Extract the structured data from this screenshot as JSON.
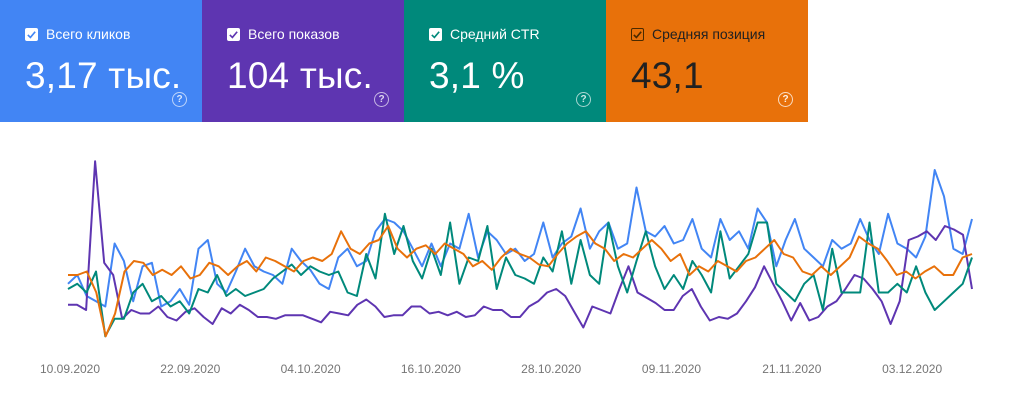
{
  "cards": [
    {
      "label": "Всего кликов",
      "value": "3,17 тыс.",
      "color": "#4285f4",
      "theme": "light",
      "checked": true
    },
    {
      "label": "Всего показов",
      "value": "104 тыс.",
      "color": "#5e35b1",
      "theme": "light",
      "checked": true
    },
    {
      "label": "Средний CTR",
      "value": "3,1 %",
      "color": "#00897b",
      "theme": "light",
      "checked": true
    },
    {
      "label": "Средняя позиция",
      "value": "43,1",
      "color": "#e8710a",
      "theme": "dark",
      "checked": true
    }
  ],
  "chart_data": {
    "type": "line",
    "x_tick_labels": [
      "10.09.2020",
      "22.09.2020",
      "04.10.2020",
      "16.10.2020",
      "28.10.2020",
      "09.11.2020",
      "21.11.2020",
      "03.12.2020"
    ],
    "grid": false,
    "legend": "none",
    "series": [
      {
        "name": "Всего кликов",
        "color": "#4285f4",
        "values": [
          0.35,
          0.4,
          0.28,
          0.25,
          0.22,
          0.58,
          0.48,
          0.25,
          0.45,
          0.47,
          0.22,
          0.25,
          0.32,
          0.23,
          0.55,
          0.6,
          0.35,
          0.3,
          0.42,
          0.55,
          0.45,
          0.42,
          0.4,
          0.35,
          0.55,
          0.48,
          0.43,
          0.35,
          0.32,
          0.5,
          0.55,
          0.45,
          0.48,
          0.65,
          0.72,
          0.7,
          0.65,
          0.55,
          0.45,
          0.58,
          0.45,
          0.58,
          0.55,
          0.75,
          0.5,
          0.65,
          0.6,
          0.52,
          0.55,
          0.48,
          0.52,
          0.7,
          0.5,
          0.58,
          0.62,
          0.78,
          0.55,
          0.65,
          0.7,
          0.55,
          0.58,
          0.9,
          0.65,
          0.62,
          0.68,
          0.58,
          0.6,
          0.72,
          0.55,
          0.5,
          0.72,
          0.6,
          0.65,
          0.55,
          0.78,
          0.7,
          0.45,
          0.6,
          0.72,
          0.55,
          0.5,
          0.45,
          0.6,
          0.55,
          0.58,
          0.72,
          0.6,
          0.52,
          0.75,
          0.58,
          0.55,
          0.5,
          0.62,
          1.0,
          0.85,
          0.55,
          0.52,
          0.72
        ]
      },
      {
        "name": "Всего показов",
        "color": "#5e35b1",
        "values": [
          0.23,
          0.23,
          0.2,
          1.05,
          0.47,
          0.4,
          0.15,
          0.2,
          0.18,
          0.18,
          0.22,
          0.16,
          0.14,
          0.19,
          0.21,
          0.16,
          0.12,
          0.21,
          0.18,
          0.23,
          0.2,
          0.16,
          0.16,
          0.15,
          0.17,
          0.17,
          0.17,
          0.15,
          0.13,
          0.19,
          0.18,
          0.17,
          0.23,
          0.26,
          0.22,
          0.16,
          0.17,
          0.17,
          0.22,
          0.22,
          0.18,
          0.19,
          0.17,
          0.19,
          0.16,
          0.17,
          0.22,
          0.2,
          0.2,
          0.16,
          0.16,
          0.22,
          0.25,
          0.3,
          0.32,
          0.28,
          0.19,
          0.1,
          0.22,
          0.2,
          0.18,
          0.32,
          0.45,
          0.3,
          0.27,
          0.24,
          0.2,
          0.2,
          0.28,
          0.32,
          0.22,
          0.14,
          0.16,
          0.15,
          0.18,
          0.25,
          0.33,
          0.45,
          0.35,
          0.25,
          0.14,
          0.24,
          0.14,
          0.16,
          0.22,
          0.25,
          0.32,
          0.4,
          0.38,
          0.32,
          0.25,
          0.12,
          0.25,
          0.6,
          0.62,
          0.65,
          0.6,
          0.68,
          0.66,
          0.63,
          0.32
        ]
      },
      {
        "name": "Средний CTR",
        "color": "#00897b",
        "values": [
          0.32,
          0.35,
          0.3,
          0.42,
          0.05,
          0.15,
          0.15,
          0.3,
          0.35,
          0.25,
          0.28,
          0.22,
          0.25,
          0.18,
          0.32,
          0.3,
          0.4,
          0.28,
          0.32,
          0.28,
          0.3,
          0.32,
          0.38,
          0.42,
          0.46,
          0.4,
          0.45,
          0.42,
          0.4,
          0.42,
          0.3,
          0.28,
          0.52,
          0.38,
          0.75,
          0.52,
          0.68,
          0.48,
          0.38,
          0.55,
          0.4,
          0.7,
          0.35,
          0.5,
          0.48,
          0.68,
          0.32,
          0.5,
          0.4,
          0.38,
          0.35,
          0.5,
          0.42,
          0.65,
          0.35,
          0.6,
          0.4,
          0.35,
          0.7,
          0.45,
          0.3,
          0.48,
          0.65,
          0.45,
          0.32,
          0.4,
          0.32,
          0.48,
          0.4,
          0.3,
          0.65,
          0.38,
          0.45,
          0.52,
          0.7,
          0.7,
          0.35,
          0.3,
          0.25,
          0.35,
          0.4,
          0.2,
          0.55,
          0.3,
          0.3,
          0.3,
          0.7,
          0.3,
          0.3,
          0.35,
          0.3,
          0.45,
          0.3,
          0.2,
          0.25,
          0.3,
          0.35,
          0.5
        ]
      },
      {
        "name": "Средняя позиция",
        "color": "#e8710a",
        "values": [
          0.4,
          0.4,
          0.42,
          0.3,
          0.05,
          0.18,
          0.42,
          0.48,
          0.47,
          0.4,
          0.43,
          0.4,
          0.45,
          0.38,
          0.4,
          0.47,
          0.45,
          0.4,
          0.45,
          0.48,
          0.42,
          0.5,
          0.48,
          0.45,
          0.42,
          0.48,
          0.5,
          0.48,
          0.52,
          0.65,
          0.55,
          0.52,
          0.58,
          0.6,
          0.68,
          0.55,
          0.5,
          0.55,
          0.57,
          0.52,
          0.58,
          0.55,
          0.52,
          0.45,
          0.48,
          0.43,
          0.5,
          0.55,
          0.52,
          0.5,
          0.46,
          0.45,
          0.52,
          0.58,
          0.62,
          0.65,
          0.58,
          0.55,
          0.48,
          0.52,
          0.5,
          0.55,
          0.6,
          0.55,
          0.48,
          0.52,
          0.4,
          0.45,
          0.42,
          0.48,
          0.45,
          0.42,
          0.48,
          0.5,
          0.55,
          0.6,
          0.52,
          0.5,
          0.42,
          0.4,
          0.45,
          0.4,
          0.45,
          0.5,
          0.62,
          0.58,
          0.55,
          0.48,
          0.4,
          0.42,
          0.38,
          0.42,
          0.45,
          0.4,
          0.4,
          0.5,
          0.52
        ]
      }
    ]
  }
}
